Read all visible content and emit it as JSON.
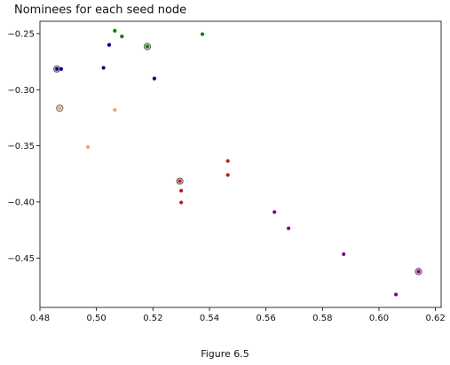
{
  "chart_data": {
    "type": "scatter",
    "title": "Nominees for each seed node",
    "xlabel": "",
    "ylabel": "",
    "xlim": [
      0.48,
      0.622
    ],
    "ylim": [
      -0.494,
      -0.239
    ],
    "xticks": [
      0.48,
      0.5,
      0.52,
      0.54,
      0.56,
      0.58,
      0.6,
      0.62
    ],
    "yticks": [
      -0.45,
      -0.4,
      -0.35,
      -0.3,
      -0.25
    ],
    "xtick_labels": [
      "0.48",
      "0.50",
      "0.52",
      "0.54",
      "0.56",
      "0.58",
      "0.60",
      "0.62"
    ],
    "ytick_labels": [
      "−0.45",
      "−0.40",
      "−0.35",
      "−0.30",
      "−0.25"
    ],
    "grid": false,
    "legend": "none",
    "series": [
      {
        "color": "#00007f",
        "points": [
          [
            0.4875,
            -0.2815
          ],
          [
            0.5045,
            -0.26
          ],
          [
            0.5025,
            -0.2805
          ],
          [
            0.5205,
            -0.29
          ]
        ],
        "seed": [
          0.486,
          -0.2815
        ]
      },
      {
        "color": "#008000",
        "points": [
          [
            0.5065,
            -0.2475
          ],
          [
            0.509,
            -0.2525
          ],
          [
            0.5375,
            -0.2505
          ]
        ],
        "seed": [
          0.518,
          -0.2615
        ]
      },
      {
        "color": "#dfa785",
        "points": [
          [
            0.5065,
            -0.318
          ],
          [
            0.497,
            -0.351
          ]
        ],
        "seed": [
          0.487,
          -0.3165
        ]
      },
      {
        "color": "#b22222",
        "points": [
          [
            0.5465,
            -0.3635
          ],
          [
            0.5465,
            -0.376
          ],
          [
            0.53,
            -0.39
          ],
          [
            0.53,
            -0.4005
          ]
        ],
        "seed": [
          0.5295,
          -0.3815
        ]
      },
      {
        "color": "#800080",
        "points": [
          [
            0.563,
            -0.409
          ],
          [
            0.568,
            -0.4235
          ],
          [
            0.5875,
            -0.4465
          ],
          [
            0.606,
            -0.4825
          ]
        ],
        "seed": [
          0.614,
          -0.462
        ]
      }
    ]
  },
  "caption": "Figure 6.5"
}
